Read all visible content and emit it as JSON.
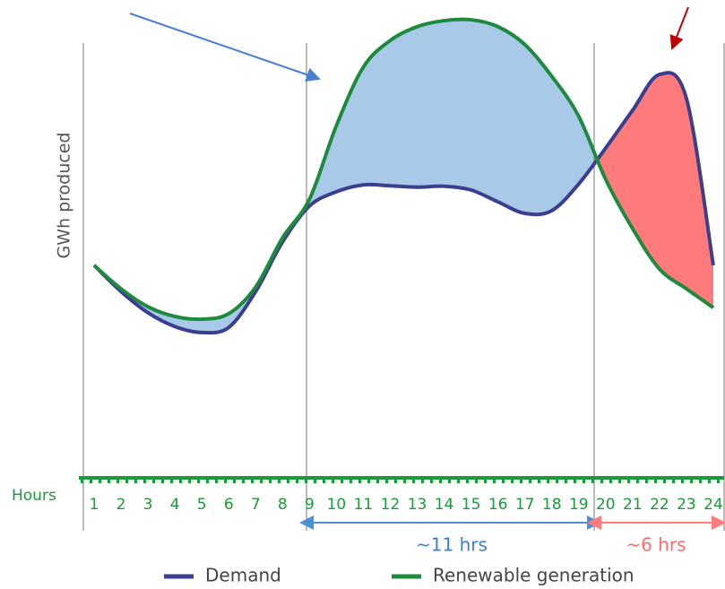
{
  "chart_data": {
    "type": "line",
    "y_label": "GWh produced",
    "x_label": "Hours",
    "x": [
      1,
      2,
      3,
      4,
      5,
      6,
      7,
      8,
      9,
      10,
      11,
      12,
      13,
      14,
      15,
      16,
      17,
      18,
      19,
      20,
      21,
      22,
      23,
      24
    ],
    "xlim": [
      0.6,
      24.4
    ],
    "xticks": [
      1,
      2,
      3,
      4,
      5,
      6,
      7,
      8,
      9,
      10,
      11,
      12,
      13,
      14,
      15,
      16,
      17,
      18,
      19,
      20,
      21,
      22,
      23,
      24
    ],
    "ylim": [
      0,
      100
    ],
    "series": [
      {
        "name": "Demand",
        "color": "#3b3f8f",
        "values": [
          46.2,
          40.5,
          35.9,
          32.9,
          31.6,
          32.7,
          40.5,
          51.3,
          59.1,
          62.2,
          63.7,
          63.5,
          63.2,
          63.4,
          62.6,
          60.0,
          57.5,
          58.1,
          63.9,
          71.7,
          79.9,
          87.7,
          82.5,
          46.2
        ]
      },
      {
        "name": "Renewable generation",
        "color": "#1e8a3e",
        "values": [
          46.2,
          41.1,
          37.2,
          35.1,
          34.5,
          35.7,
          41.5,
          52.2,
          60.6,
          76.6,
          89.3,
          95.1,
          98.1,
          99.4,
          99.6,
          98.1,
          94.2,
          87.3,
          78.6,
          64.9,
          54.2,
          45.4,
          41.1,
          37.0
        ]
      }
    ],
    "surplus_color": "#a9c9e8",
    "deficit_color": "#ff7b7b",
    "annotations": [
      "~11 hrs",
      "~6 hrs"
    ]
  }
}
